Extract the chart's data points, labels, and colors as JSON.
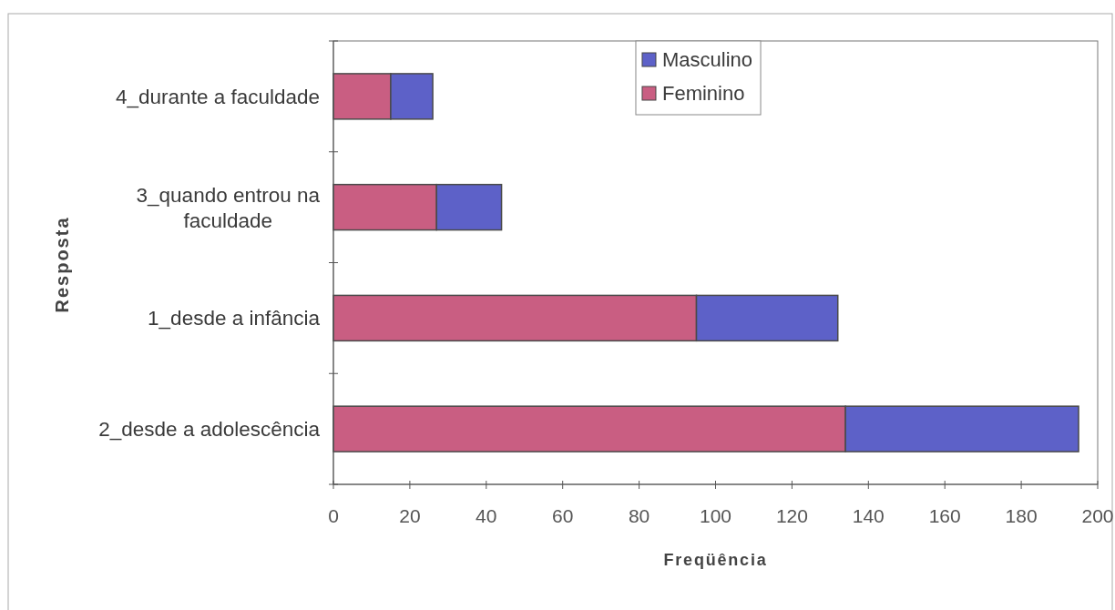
{
  "chart_data": {
    "type": "bar",
    "orientation": "horizontal",
    "stacked": true,
    "xlabel": "Freqüência",
    "ylabel": "Resposta",
    "categories": [
      "4_durante a faculdade",
      "3_quando entrou na faculdade",
      "1_desde a infância",
      "2_desde a adolescência"
    ],
    "series": [
      {
        "name": "Feminino",
        "color": "#c95e82",
        "values": [
          15,
          27,
          95,
          134
        ]
      },
      {
        "name": "Masculino",
        "color": "#5d61c8",
        "values": [
          11,
          17,
          37,
          61
        ]
      }
    ],
    "xlim": [
      0,
      200
    ],
    "xticks": [
      0,
      20,
      40,
      60,
      80,
      100,
      120,
      140,
      160,
      180,
      200
    ],
    "legend": "top"
  }
}
